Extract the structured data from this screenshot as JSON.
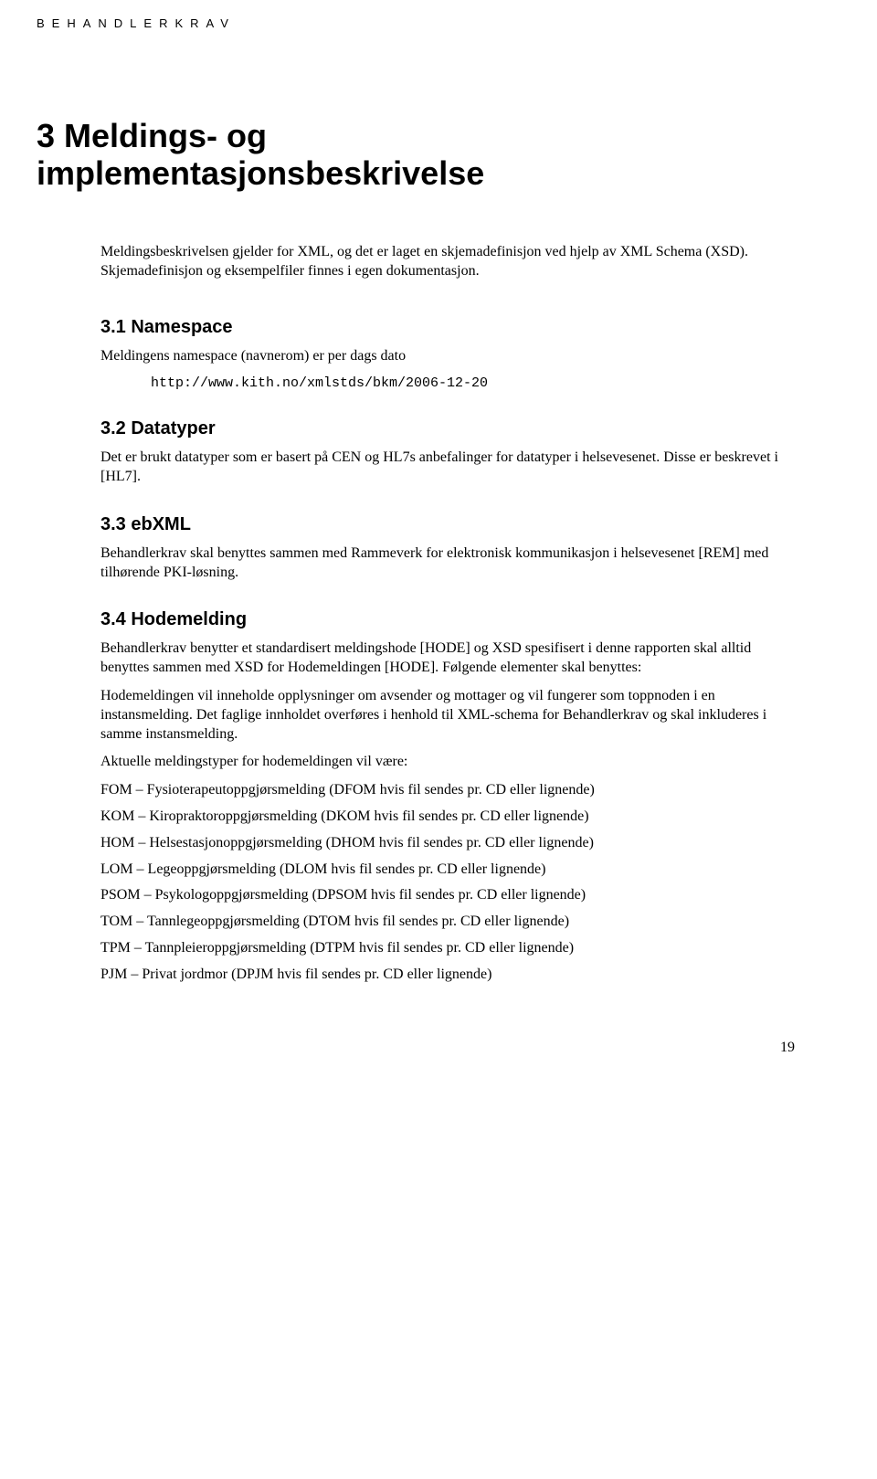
{
  "running_header": "BEHANDLERKRAV",
  "chapter": {
    "number": "3",
    "title_line1": "3 Meldings- og",
    "title_line2": "implementasjonsbeskrivelse"
  },
  "intro": "Meldingsbeskrivelsen gjelder for XML, og det er laget en skjemadefinisjon ved hjelp av XML Schema (XSD). Skjemadefinisjon og eksempelfiler finnes i egen dokumentasjon.",
  "sections": {
    "namespace": {
      "heading": "3.1  Namespace",
      "text": "Meldingens namespace (navnerom) er per dags dato",
      "code": "http://www.kith.no/xmlstds/bkm/2006-12-20"
    },
    "datatyper": {
      "heading": "3.2  Datatyper",
      "text": "Det er brukt datatyper som er basert på CEN og HL7s anbefalinger for datatyper i helsevesenet. Disse er beskrevet i [HL7]."
    },
    "ebxml": {
      "heading": "3.3  ebXML",
      "text": "Behandlerkrav skal benyttes sammen med Rammeverk for elektronisk kommunikasjon i helsevesenet [REM] med tilhørende PKI-løsning."
    },
    "hodemelding": {
      "heading": "3.4  Hodemelding",
      "p1": "Behandlerkrav benytter et standardisert meldingshode [HODE] og XSD spesifisert i denne rapporten skal alltid benyttes sammen med XSD for Hodemeldingen [HODE]. Følgende elementer skal benyttes:",
      "p2": "Hodemeldingen vil inneholde opplysninger om avsender og mottager og vil fungerer som toppnoden i en instansmelding. Det faglige innholdet overføres i henhold til XML-schema for Behandlerkrav og skal inkluderes i samme instansmelding.",
      "p3": "Aktuelle meldingstyper for hodemeldingen vil være:",
      "items": [
        "FOM – Fysioterapeutoppgjørsmelding (DFOM hvis fil sendes pr. CD eller lignende)",
        "KOM – Kiropraktoroppgjørsmelding (DKOM hvis fil sendes pr. CD eller lignende)",
        "HOM – Helsestasjonoppgjørsmelding (DHOM hvis fil sendes pr. CD eller lignende)",
        "LOM – Legeoppgjørsmelding (DLOM hvis fil sendes pr. CD eller lignende)",
        "PSOM – Psykologoppgjørsmelding (DPSOM hvis fil sendes pr. CD eller lignende)",
        "TOM – Tannlegeoppgjørsmelding (DTOM hvis fil sendes pr. CD eller lignende)",
        "TPM – Tannpleieroppgjørsmelding (DTPM hvis fil sendes pr. CD eller lignende)",
        "PJM – Privat jordmor (DPJM hvis fil sendes pr. CD eller lignende)"
      ]
    }
  },
  "page_number": "19"
}
